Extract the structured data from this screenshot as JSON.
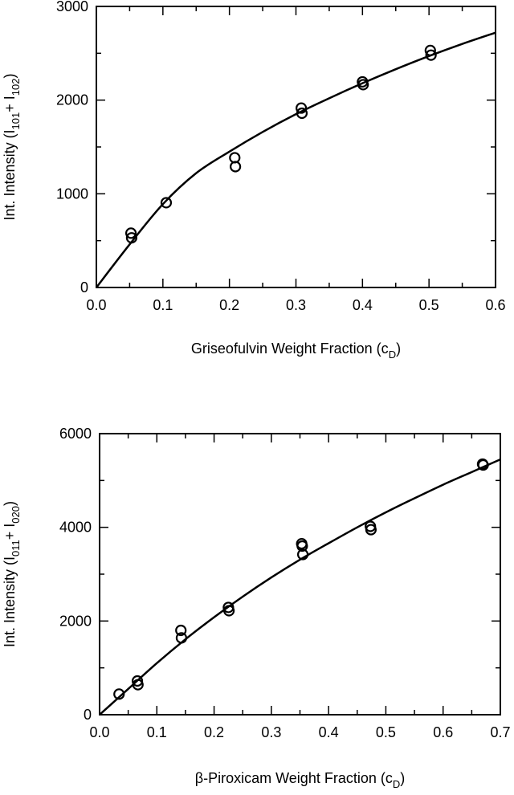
{
  "chart_data": [
    {
      "type": "scatter",
      "xlabel": {
        "main": "Griseofulvin Weight Fraction (c",
        "sub": "D",
        "close": ")"
      },
      "ylabel": {
        "p1": "Int. Intensity (I",
        "s1": "101",
        "p2": "+ I",
        "s2": "102",
        "p3": ")"
      },
      "xlim": [
        0,
        0.6
      ],
      "ylim": [
        0,
        3000
      ],
      "xticks": [
        "0.0",
        "0.1",
        "0.2",
        "0.3",
        "0.4",
        "0.5",
        "0.6"
      ],
      "xtick_values": [
        0,
        0.1,
        0.2,
        0.3,
        0.4,
        0.5,
        0.6
      ],
      "yticks": [
        "0",
        "1000",
        "2000",
        "3000"
      ],
      "ytick_values": [
        0,
        1000,
        2000,
        3000
      ],
      "x_minor_step": 0.05,
      "y_minor_step": 500,
      "grid": false,
      "series": [
        {
          "x": [
            0.052,
            0.053,
            0.105,
            0.208,
            0.209,
            0.308,
            0.309,
            0.4,
            0.401,
            0.502,
            0.503
          ],
          "y": [
            580,
            530,
            905,
            1385,
            1290,
            1915,
            1860,
            2195,
            2165,
            2530,
            2480
          ]
        }
      ],
      "fit_curve": {
        "x": [
          0,
          0.05,
          0.1,
          0.15,
          0.2,
          0.25,
          0.3,
          0.35,
          0.4,
          0.45,
          0.5,
          0.55,
          0.6
        ],
        "y": [
          0,
          460,
          890,
          1220,
          1450,
          1660,
          1850,
          2020,
          2180,
          2330,
          2470,
          2600,
          2720
        ]
      }
    },
    {
      "type": "scatter",
      "xlabel": {
        "main": "β-Piroxicam Weight Fraction (c",
        "sub": "D",
        "close": ")"
      },
      "ylabel": {
        "p1": "Int. Intensity (I",
        "s1": "011",
        "p2": "+ I",
        "s2": "020",
        "p3": ")"
      },
      "xlim": [
        0,
        0.7
      ],
      "ylim": [
        0,
        6000
      ],
      "xticks": [
        "0.0",
        "0.1",
        "0.2",
        "0.3",
        "0.4",
        "0.5",
        "0.6",
        "0.7"
      ],
      "xtick_values": [
        0,
        0.1,
        0.2,
        0.3,
        0.4,
        0.5,
        0.6,
        0.7
      ],
      "yticks": [
        "0",
        "2000",
        "4000",
        "6000"
      ],
      "ytick_values": [
        0,
        2000,
        4000,
        6000
      ],
      "x_minor_step": 0.05,
      "y_minor_step": 1000,
      "grid": false,
      "series": [
        {
          "x": [
            0.034,
            0.066,
            0.067,
            0.142,
            0.143,
            0.225,
            0.226,
            0.353,
            0.354,
            0.355,
            0.473,
            0.474,
            0.669,
            0.67
          ],
          "y": [
            440,
            720,
            640,
            1800,
            1640,
            2290,
            2220,
            3650,
            3600,
            3420,
            4020,
            3950,
            5350,
            5330
          ]
        }
      ],
      "fit_curve": {
        "x": [
          0,
          0.05,
          0.1,
          0.15,
          0.2,
          0.25,
          0.3,
          0.35,
          0.4,
          0.45,
          0.5,
          0.55,
          0.6,
          0.65,
          0.7
        ],
        "y": [
          0,
          550,
          1100,
          1610,
          2080,
          2520,
          2930,
          3310,
          3660,
          4000,
          4320,
          4620,
          4910,
          5180,
          5450
        ]
      }
    }
  ]
}
